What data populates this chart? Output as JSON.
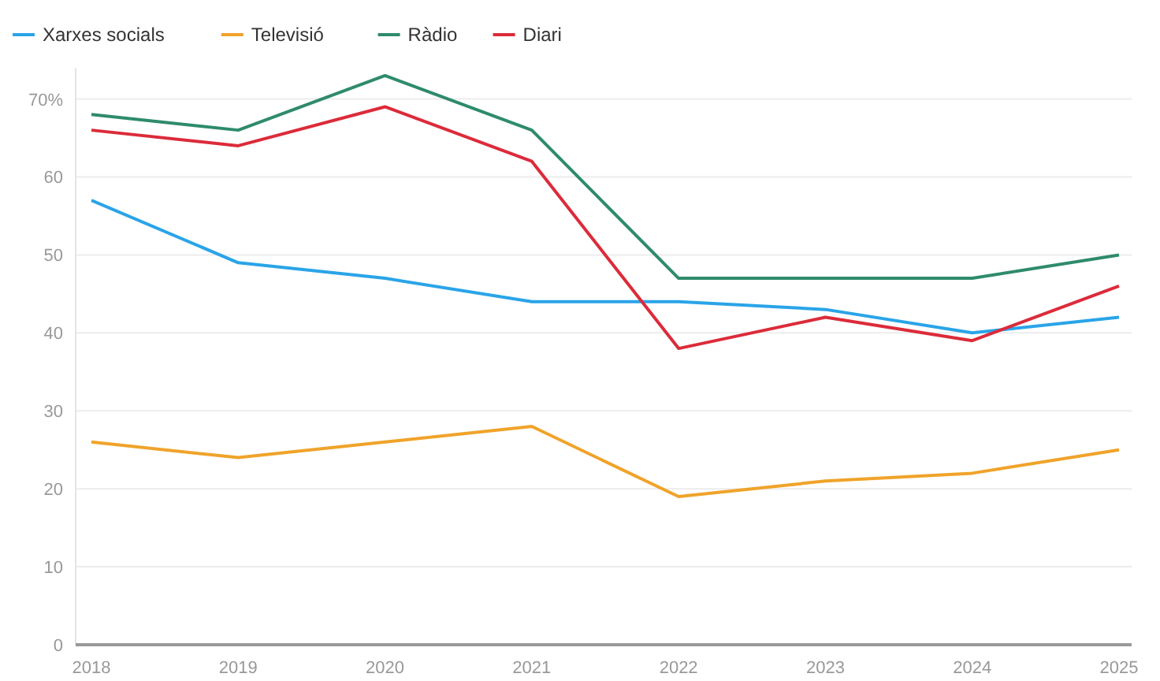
{
  "chart_data": {
    "type": "line",
    "categories": [
      "2018",
      "2019",
      "2020",
      "2021",
      "2022",
      "2023",
      "2024",
      "2025"
    ],
    "series": [
      {
        "name": "Xarxes socials",
        "color": "#2aa4e8",
        "values": [
          57,
          49,
          47,
          44,
          44,
          43,
          40,
          42
        ]
      },
      {
        "name": "Televisió",
        "color": "#f0a32a",
        "values": [
          26,
          24,
          26,
          28,
          19,
          21,
          22,
          25
        ]
      },
      {
        "name": "Ràdio",
        "color": "#2e8b6b",
        "values": [
          68,
          66,
          73,
          66,
          47,
          47,
          47,
          50
        ]
      },
      {
        "name": "Diari",
        "color": "#dc2b3a",
        "values": [
          66,
          64,
          69,
          62,
          38,
          42,
          39,
          46
        ]
      }
    ],
    "ylim": [
      0,
      74
    ],
    "yticks": [
      0,
      10,
      20,
      30,
      40,
      50,
      60,
      {
        "value": 70,
        "label": "70%"
      }
    ],
    "grid": "y",
    "legend": "top left",
    "marker": "none",
    "line_style": "solid"
  }
}
